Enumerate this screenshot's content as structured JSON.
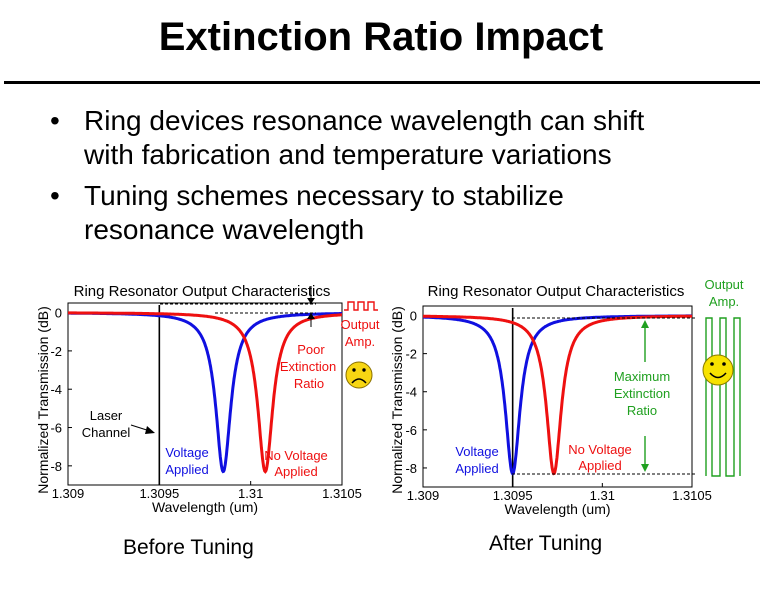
{
  "slide": {
    "title": "Extinction Ratio Impact",
    "bullets": [
      {
        "line1": "Ring devices resonance wavelength can shift",
        "line2": "with fabrication and temperature variations"
      },
      {
        "line1": "Tuning schemes necessary to stabilize",
        "line2": "resonance wavelength"
      }
    ],
    "caption_before": "Before Tuning",
    "caption_after": "After Tuning"
  },
  "colors": {
    "voltage": "#1010e0",
    "no_voltage": "#ee1010",
    "output_amp_after": "#20a020"
  },
  "chart_data": [
    {
      "type": "line",
      "title": "Ring Resonator Output Characteristics",
      "xlabel": "Wavelength (um)",
      "ylabel": "Normalized Transmission (dB)",
      "xlim": [
        1.309,
        1.3105
      ],
      "ylim": [
        -9,
        0.5
      ],
      "x_ticks": [
        "1.309",
        "1.3095",
        "1.31",
        "1.3105"
      ],
      "y_ticks": [
        "0",
        "-2",
        "-4",
        "-6",
        "-8"
      ],
      "laser_channel_x": 1.3095,
      "series": [
        {
          "name": "Voltage Applied",
          "center": 1.30985,
          "depth_db": -8.3,
          "hwhm": 5e-05
        },
        {
          "name": "No Voltage Applied",
          "center": 1.31008,
          "depth_db": -8.3,
          "hwhm": 5e-05
        }
      ],
      "annotations": {
        "laser_line1": "Laser",
        "laser_line2": "Channel",
        "voltage_line1": "Voltage",
        "voltage_line2": "Applied",
        "novoltage_line1": "No Voltage",
        "novoltage_line2": "Applied",
        "er_line1": "Poor",
        "er_line2": "Extinction",
        "er_line3": "Ratio",
        "amp_line1": "Output",
        "amp_line2": "Amp."
      }
    },
    {
      "type": "line",
      "title": "Ring Resonator Output Characteristics",
      "xlabel": "Wavelength (um)",
      "ylabel": "Normalized Transmission (dB)",
      "xlim": [
        1.309,
        1.3105
      ],
      "ylim": [
        -9,
        0.5
      ],
      "x_ticks": [
        "1.309",
        "1.3095",
        "1.31",
        "1.3105"
      ],
      "y_ticks": [
        "0",
        "-2",
        "-4",
        "-6",
        "-8"
      ],
      "laser_channel_x": 1.3095,
      "series": [
        {
          "name": "Voltage Applied",
          "center": 1.3095,
          "depth_db": -8.3,
          "hwhm": 5e-05
        },
        {
          "name": "No Voltage Applied",
          "center": 1.30973,
          "depth_db": -8.3,
          "hwhm": 5e-05
        }
      ],
      "annotations": {
        "voltage_line1": "Voltage",
        "voltage_line2": "Applied",
        "novoltage_line1": "No Voltage",
        "novoltage_line2": "Applied",
        "er_line1": "Maximum",
        "er_line2": "Extinction",
        "er_line3": "Ratio",
        "amp_line1": "Output",
        "amp_line2": "Amp."
      }
    }
  ]
}
